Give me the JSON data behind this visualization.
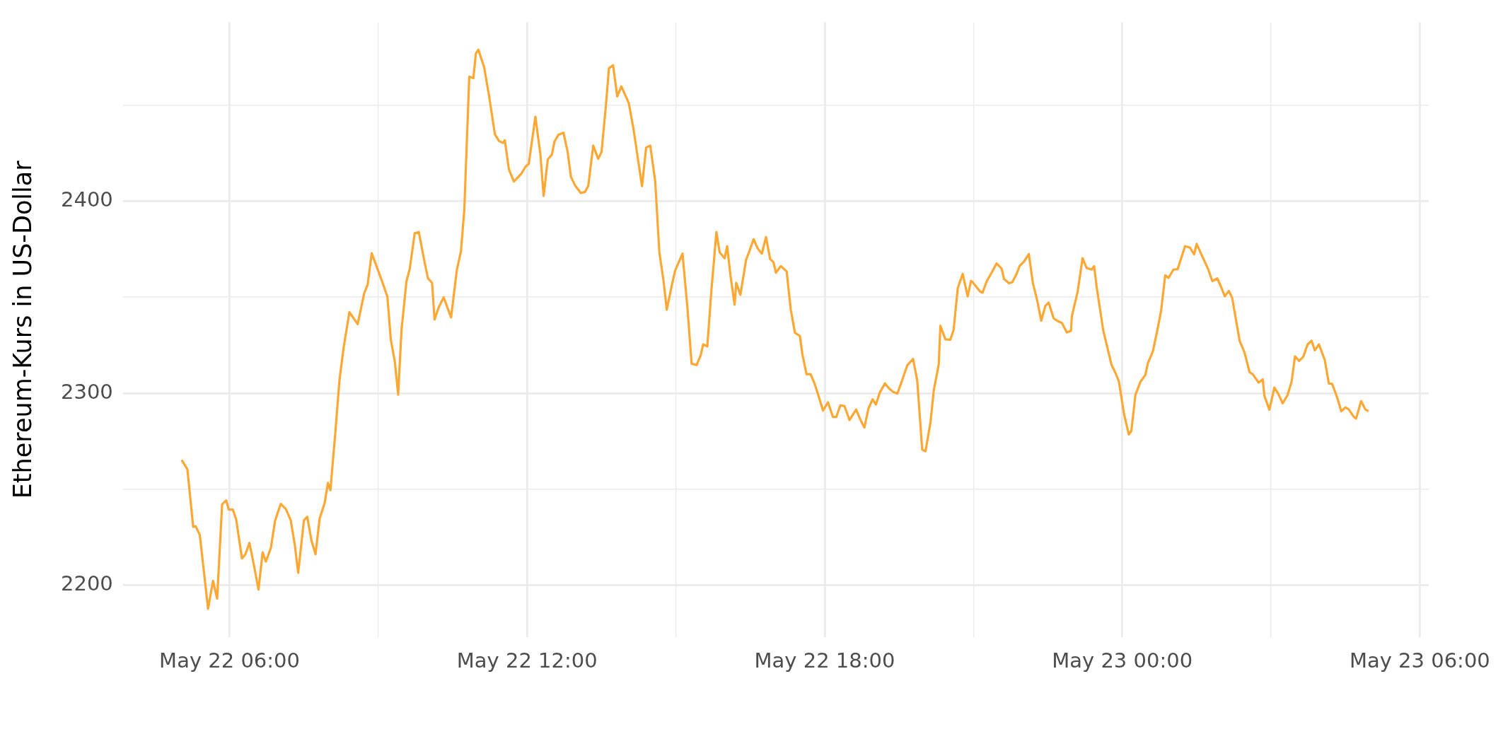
{
  "chart_data": {
    "type": "line",
    "ylabel": "Ethereum-Kurs in US-Dollar",
    "color": "#ffa733",
    "x": [
      "--05-22T05:02",
      "--05-22T05:09",
      "--05-22T05:16",
      "--05-22T05:19",
      "--05-22T05:24",
      "--05-22T05:34",
      "--05-22T05:40",
      "--05-22T05:45",
      "--05-22T05:51",
      "--05-22T05:56",
      "--05-22T05:59",
      "--05-22T06:04",
      "--05-22T06:08",
      "--05-22T06:15",
      "--05-22T06:19",
      "--05-22T06:24",
      "--05-22T06:29",
      "--05-22T06:35",
      "--05-22T06:40",
      "--05-22T06:44",
      "--05-22T06:50",
      "--05-22T06:55",
      "--05-22T06:59",
      "--05-22T07:02",
      "--05-22T07:08",
      "--05-22T07:14",
      "--05-22T07:19",
      "--05-22T07:23",
      "--05-22T07:30",
      "--05-22T07:34",
      "--05-22T07:39",
      "--05-22T07:44",
      "--05-22T07:49",
      "--05-22T07:55",
      "--05-22T07:59",
      "--05-22T08:02",
      "--05-22T08:08",
      "--05-22T08:13",
      "--05-22T08:18",
      "--05-22T08:25",
      "--05-22T08:35",
      "--05-22T08:43",
      "--05-22T08:47",
      "--05-22T08:52",
      "--05-22T09:01",
      "--05-22T09:05",
      "--05-22T09:11",
      "--05-22T09:15",
      "--05-22T09:20",
      "--05-22T09:24",
      "--05-22T09:28",
      "--05-22T09:34",
      "--05-22T09:38",
      "--05-22T09:44",
      "--05-22T09:49",
      "--05-22T09:55",
      "--05-22T10:00",
      "--05-22T10:05",
      "--05-22T10:08",
      "--05-22T10:13",
      "--05-22T10:19",
      "--05-22T10:28",
      "--05-22T10:35",
      "--05-22T10:40",
      "--05-22T10:44",
      "--05-22T10:50",
      "--05-22T10:55",
      "--05-22T10:58",
      "--05-22T11:01",
      "--05-22T11:08",
      "--05-22T11:14",
      "--05-22T11:19",
      "--05-22T11:21",
      "--05-22T11:26",
      "--05-22T11:31",
      "--05-22T11:33",
      "--05-22T11:38",
      "--05-22T11:44",
      "--05-22T11:53",
      "--05-22T11:58",
      "--05-22T12:02",
      "--05-22T12:10",
      "--05-22T12:16",
      "--05-22T12:20",
      "--05-22T12:25",
      "--05-22T12:30",
      "--05-22T12:33",
      "--05-22T12:38",
      "--05-22T12:44",
      "--05-22T12:49",
      "--05-22T12:53",
      "--05-22T12:58",
      "--05-22T13:05",
      "--05-22T13:10",
      "--05-22T13:14",
      "--05-22T13:20",
      "--05-22T13:26",
      "--05-22T13:30",
      "--05-22T13:35",
      "--05-22T13:39",
      "--05-22T13:44",
      "--05-22T13:49",
      "--05-22T13:54",
      "--05-22T14:03",
      "--05-22T14:09",
      "--05-22T14:14",
      "--05-22T14:19",
      "--05-22T14:24",
      "--05-22T14:29",
      "--05-22T14:35",
      "--05-22T14:40",
      "--05-22T14:45",
      "--05-22T14:49",
      "--05-22T14:55",
      "--05-22T14:59",
      "--05-22T15:08",
      "--05-22T15:14",
      "--05-22T15:19",
      "--05-22T15:25",
      "--05-22T15:30",
      "--05-22T15:33",
      "--05-22T15:38",
      "--05-22T15:43",
      "--05-22T15:49",
      "--05-22T15:53",
      "--05-22T15:59",
      "--05-22T16:02",
      "--05-22T16:06",
      "--05-22T16:11",
      "--05-22T16:13",
      "--05-22T16:18",
      "--05-22T16:25",
      "--05-22T16:28",
      "--05-22T16:34",
      "--05-22T16:39",
      "--05-22T16:44",
      "--05-22T16:49",
      "--05-22T16:54",
      "--05-22T16:58",
      "--05-22T17:01",
      "--05-22T17:07",
      "--05-22T17:14",
      "--05-22T17:19",
      "--05-22T17:24",
      "--05-22T17:30",
      "--05-22T17:33",
      "--05-22T17:38",
      "--05-22T17:43",
      "--05-22T17:48",
      "--05-22T17:53",
      "--05-22T17:58",
      "--05-22T18:04",
      "--05-22T18:10",
      "--05-22T18:14",
      "--05-22T18:19",
      "--05-22T18:24",
      "--05-22T18:30",
      "--05-22T18:38",
      "--05-22T18:43",
      "--05-22T18:48",
      "--05-22T18:53",
      "--05-22T18:58",
      "--05-22T19:02",
      "--05-22T19:07",
      "--05-22T19:13",
      "--05-22T19:18",
      "--05-22T19:23",
      "--05-22T19:28",
      "--05-22T19:34",
      "--05-22T19:40",
      "--05-22T19:47",
      "--05-22T19:52",
      "--05-22T19:58",
      "--05-22T20:02",
      "--05-22T20:08",
      "--05-22T20:12",
      "--05-22T20:18",
      "--05-22T20:20",
      "--05-22T20:26",
      "--05-22T20:32",
      "--05-22T20:36",
      "--05-22T20:41",
      "--05-22T20:47",
      "--05-22T20:53",
      "--05-22T20:57",
      "--05-22T20:59",
      "--05-22T21:08",
      "--05-22T21:11",
      "--05-22T21:16",
      "--05-22T21:22",
      "--05-22T21:28",
      "--05-22T21:34",
      "--05-22T21:37",
      "--05-22T21:43",
      "--05-22T21:47",
      "--05-22T21:52",
      "--05-22T21:56",
      "--05-22T22:01",
      "--05-22T22:07",
      "--05-22T22:12",
      "--05-22T22:17",
      "--05-22T22:22",
      "--05-22T22:27",
      "--05-22T22:31",
      "--05-22T22:37",
      "--05-22T22:42",
      "--05-22T22:47",
      "--05-22T22:53",
      "--05-22T22:58",
      "--05-22T22:59",
      "--05-22T23:06",
      "--05-22T23:12",
      "--05-22T23:17",
      "--05-22T23:23",
      "--05-22T23:26",
      "--05-22T23:29",
      "--05-22T23:37",
      "--05-22T23:47",
      "--05-22T23:52",
      "--05-22T23:56",
      "--05-23T00:02",
      "--05-23T00:08",
      "--05-23T00:11",
      "--05-23T00:16",
      "--05-23T00:22",
      "--05-23T00:28",
      "--05-23T00:31",
      "--05-23T00:37",
      "--05-23T00:42",
      "--05-23T00:47",
      "--05-23T00:52",
      "--05-23T00:56",
      "--05-23T01:02",
      "--05-23T01:07",
      "--05-23T01:11",
      "--05-23T01:16",
      "--05-23T01:22",
      "--05-23T01:27",
      "--05-23T01:30",
      "--05-23T01:36",
      "--05-23T01:44",
      "--05-23T01:49",
      "--05-23T01:55",
      "--05-23T02:00",
      "--05-23T02:04",
      "--05-23T02:09",
      "--05-23T02:13",
      "--05-23T02:22",
      "--05-23T02:28",
      "--05-23T02:34",
      "--05-23T02:38",
      "--05-23T02:45",
      "--05-23T02:50",
      "--05-23T02:52",
      "--05-23T02:58",
      "--05-23T03:04",
      "--05-23T03:09",
      "--05-23T03:14",
      "--05-23T03:20",
      "--05-23T03:25",
      "--05-23T03:29",
      "--05-23T03:34",
      "--05-23T03:39",
      "--05-23T03:44",
      "--05-23T03:49",
      "--05-23T03:53",
      "--05-23T03:58",
      "--05-23T04:05",
      "--05-23T04:10",
      "--05-23T04:14",
      "--05-23T04:20",
      "--05-23T04:25",
      "--05-23T04:30",
      "--05-23T04:34",
      "--05-23T04:40",
      "--05-23T04:43",
      "--05-23T04:49",
      "--05-23T04:54",
      "--05-23T04:58"
    ],
    "values": [
      2265.3,
      2260.4,
      2230.4,
      2230.8,
      2226.2,
      2187.8,
      2202.4,
      2193.1,
      2242.2,
      2244.2,
      2239.4,
      2239.4,
      2234.3,
      2214.0,
      2216.0,
      2222.1,
      2211.6,
      2197.8,
      2217.2,
      2212.4,
      2219.5,
      2233.5,
      2238.7,
      2242.4,
      2239.8,
      2233.9,
      2220.9,
      2206.5,
      2233.9,
      2235.7,
      2223.5,
      2216.2,
      2234.9,
      2242.8,
      2253.3,
      2249.5,
      2279.7,
      2306.9,
      2323.7,
      2342.2,
      2335.9,
      2352.1,
      2356.4,
      2372.8,
      2362.3,
      2357.6,
      2350.1,
      2328.2,
      2316.2,
      2299.2,
      2332.7,
      2358.2,
      2364.7,
      2383.2,
      2383.8,
      2370.2,
      2359.8,
      2357.4,
      2338.3,
      2344.6,
      2349.9,
      2339.4,
      2364.1,
      2374.0,
      2395.3,
      2464.7,
      2463.9,
      2476.7,
      2478.7,
      2469.6,
      2454.6,
      2440.4,
      2434.7,
      2431.2,
      2430.2,
      2431.6,
      2416.4,
      2410.1,
      2414.2,
      2417.8,
      2419.3,
      2443.8,
      2424.5,
      2402.6,
      2421.7,
      2424.1,
      2430.8,
      2434.5,
      2435.5,
      2425.6,
      2412.6,
      2408.1,
      2404.1,
      2404.7,
      2407.9,
      2428.8,
      2421.9,
      2425.4,
      2448.1,
      2469.0,
      2470.6,
      2454.4,
      2459.6,
      2450.9,
      2436.7,
      2422.1,
      2407.7,
      2427.8,
      2428.8,
      2410.1,
      2373.2,
      2358.6,
      2343.4,
      2356.0,
      2363.7,
      2372.6,
      2344.2,
      2315.4,
      2314.6,
      2319.7,
      2325.4,
      2324.3,
      2353.8,
      2383.8,
      2373.2,
      2370.2,
      2376.5,
      2361.3,
      2346.0,
      2357.4,
      2351.1,
      2369.6,
      2372.8,
      2380.1,
      2375.3,
      2372.6,
      2381.3,
      2369.8,
      2368.2,
      2362.7,
      2366.1,
      2363.3,
      2343.4,
      2331.4,
      2329.8,
      2320.3,
      2309.9,
      2309.9,
      2304.7,
      2298.0,
      2290.9,
      2295.3,
      2287.6,
      2287.6,
      2293.7,
      2293.3,
      2286.0,
      2291.5,
      2286.4,
      2282.1,
      2292.1,
      2296.8,
      2294.1,
      2300.6,
      2305.1,
      2302.4,
      2300.6,
      2299.8,
      2307.1,
      2314.6,
      2317.8,
      2306.5,
      2270.6,
      2269.8,
      2284.8,
      2301.4,
      2315.0,
      2335.1,
      2328.0,
      2327.8,
      2332.9,
      2354.6,
      2362.1,
      2350.3,
      2358.4,
      2357.8,
      2352.9,
      2352.3,
      2358.2,
      2362.7,
      2367.5,
      2364.9,
      2359.4,
      2357.2,
      2357.8,
      2361.9,
      2366.3,
      2368.4,
      2372.4,
      2357.0,
      2348.5,
      2337.7,
      2345.4,
      2347.1,
      2339.0,
      2337.5,
      2336.5,
      2331.6,
      2332.5,
      2340.0,
      2352.7,
      2370.2,
      2365.1,
      2364.3,
      2366.1,
      2355.4,
      2332.7,
      2314.8,
      2310.3,
      2306.1,
      2289.5,
      2278.5,
      2280.3,
      2299.2,
      2305.9,
      2309.5,
      2315.6,
      2321.7,
      2331.8,
      2342.8,
      2361.3,
      2360.0,
      2364.3,
      2364.5,
      2369.8,
      2376.5,
      2375.7,
      2372.2,
      2377.7,
      2372.0,
      2364.5,
      2358.3,
      2359.7,
      2354.9,
      2350.4,
      2353.2,
      2349.6,
      2327.3,
      2321.1,
      2311.0,
      2309.8,
      2305.5,
      2307.2,
      2298.6,
      2291.4,
      2302.9,
      2299.5,
      2294.7,
      2299.0,
      2306.2,
      2319.2,
      2316.8,
      2318.9,
      2325.2,
      2327.3,
      2322.3,
      2325.4,
      2317.3,
      2305.0,
      2304.8,
      2297.8,
      2290.6,
      2292.6,
      2291.6,
      2287.8,
      2286.8,
      2295.9,
      2291.6,
      2290.6
    ],
    "xlim": [
      "--05-22T03:51",
      "--05-23T06:11"
    ],
    "ylim": [
      2173,
      2493
    ],
    "xticks": [
      {
        "value": "--05-22T06:00",
        "label": "May 22 06:00"
      },
      {
        "value": "--05-22T09:00",
        "label": null
      },
      {
        "value": "--05-22T12:00",
        "label": "May 22 12:00"
      },
      {
        "value": "--05-22T15:00",
        "label": null
      },
      {
        "value": "--05-22T18:00",
        "label": "May 22 18:00"
      },
      {
        "value": "--05-22T21:00",
        "label": null
      },
      {
        "value": "--05-23T00:00",
        "label": "May 23 00:00"
      },
      {
        "value": "--05-23T03:00",
        "label": null
      },
      {
        "value": "--05-23T06:00",
        "label": "May 23 06:00"
      }
    ],
    "yticks": [
      2200,
      {
        "value": 2250,
        "label": null
      },
      2300,
      {
        "value": 2350,
        "label": null
      },
      2400,
      {
        "value": 2450,
        "label": null
      }
    ],
    "grid": true
  }
}
